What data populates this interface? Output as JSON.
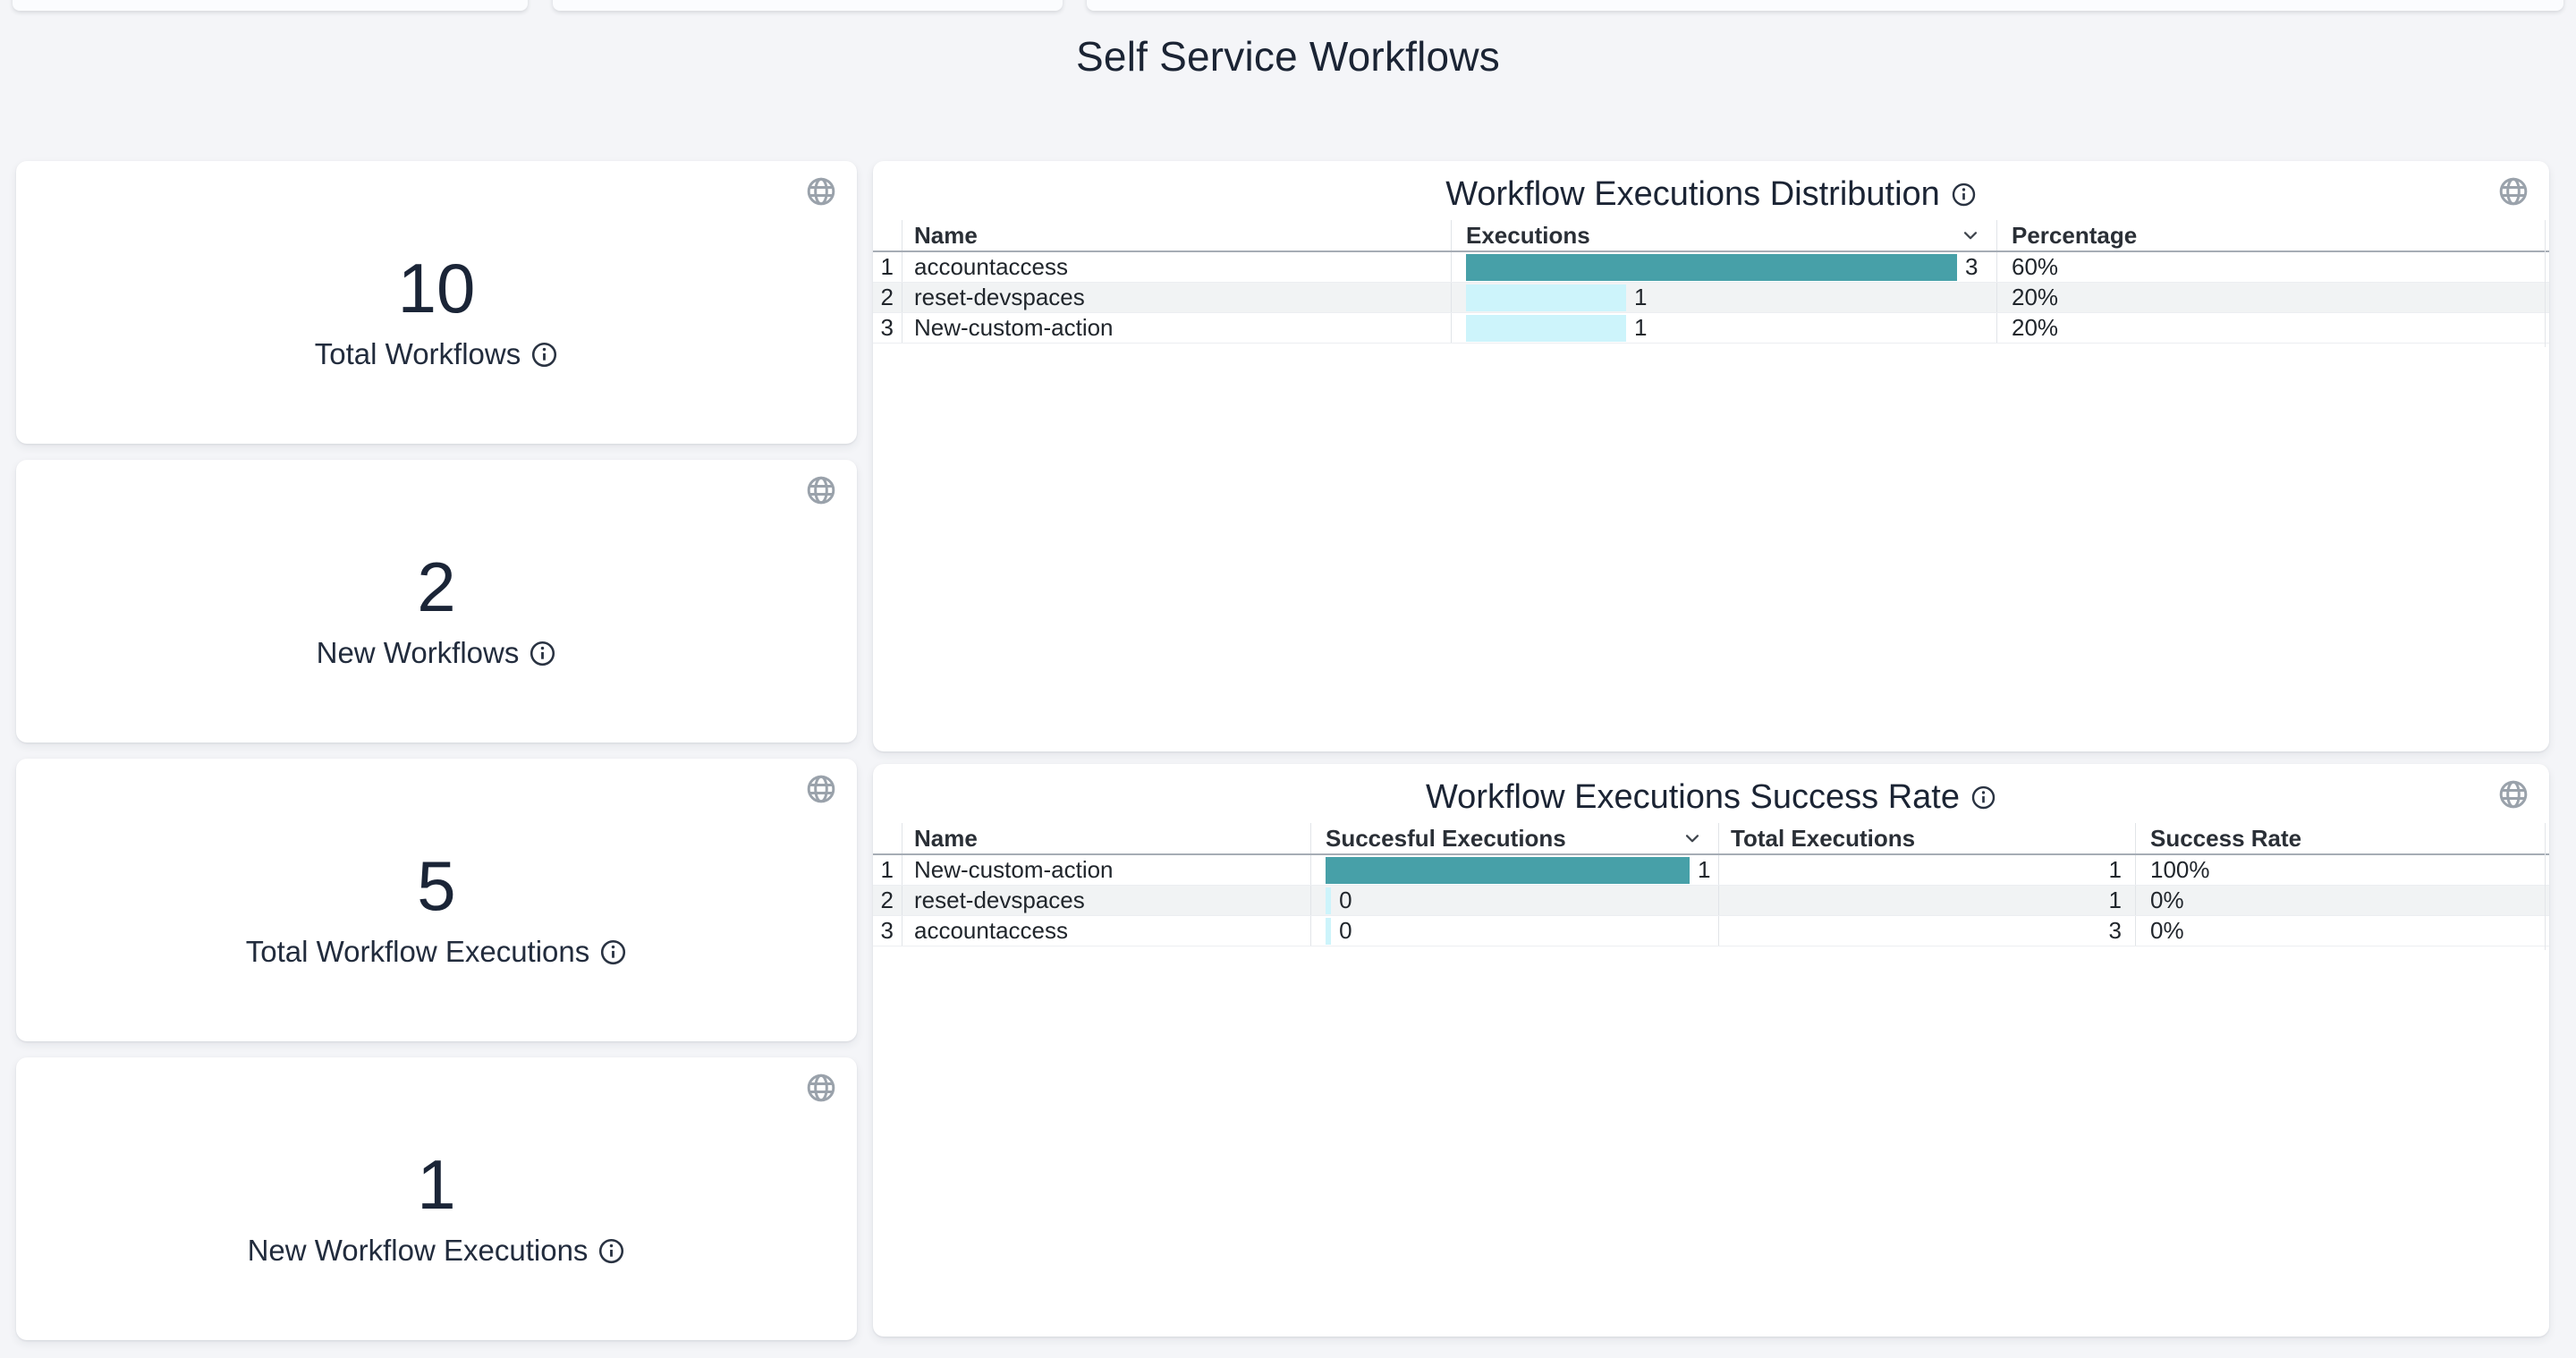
{
  "page": {
    "title": "Self Service Workflows"
  },
  "colors": {
    "page_bg": "#f4f5f8",
    "card_bg": "#ffffff",
    "title_text": "#1b2434",
    "teal_bar": "#47a0a8",
    "light_cyan_bar": "#cdf4fb",
    "zebra_row": "#f1f3f4",
    "icon_gray": "#9aa2ab"
  },
  "stat_cards": [
    {
      "value": "10",
      "label": "Total Workflows"
    },
    {
      "value": "2",
      "label": "New Workflows"
    },
    {
      "value": "5",
      "label": "Total Workflow Executions"
    },
    {
      "value": "1",
      "label": "New Workflow Executions"
    }
  ],
  "tables": [
    {
      "title": "Workflow Executions Distribution",
      "columns": {
        "name": "Name",
        "bar": "Executions",
        "col3": "Percentage"
      },
      "sorted_by": "Executions",
      "rows": [
        {
          "index": "1",
          "name": "accountaccess",
          "value": "3",
          "bar_width": "100%",
          "bar_color": "#47a0a8",
          "col3": "60%"
        },
        {
          "index": "2",
          "name": "reset-devspaces",
          "value": "1",
          "bar_width": "32.6%",
          "bar_color": "#cdf4fb",
          "col3": "20%"
        },
        {
          "index": "3",
          "name": "New-custom-action",
          "value": "1",
          "bar_width": "32.6%",
          "bar_color": "#cdf4fb",
          "col3": "20%"
        }
      ]
    },
    {
      "title": "Workflow Executions Success Rate",
      "columns": {
        "name": "Name",
        "bar": "Succesful Executions",
        "col3": "Total Executions",
        "col4": "Success Rate"
      },
      "sorted_by": "Succesful Executions",
      "rows": [
        {
          "index": "1",
          "name": "New-custom-action",
          "value": "1",
          "bar_width": "100%",
          "bar_color": "#47a0a8",
          "col3": "1",
          "col4": "100%"
        },
        {
          "index": "2",
          "name": "reset-devspaces",
          "value": "0",
          "bar_width": "1.5%",
          "bar_color": "#cdf4fb",
          "col3": "1",
          "col4": "0%"
        },
        {
          "index": "3",
          "name": "accountaccess",
          "value": "0",
          "bar_width": "1.5%",
          "bar_color": "#cdf4fb",
          "col3": "3",
          "col4": "0%"
        }
      ]
    }
  ]
}
